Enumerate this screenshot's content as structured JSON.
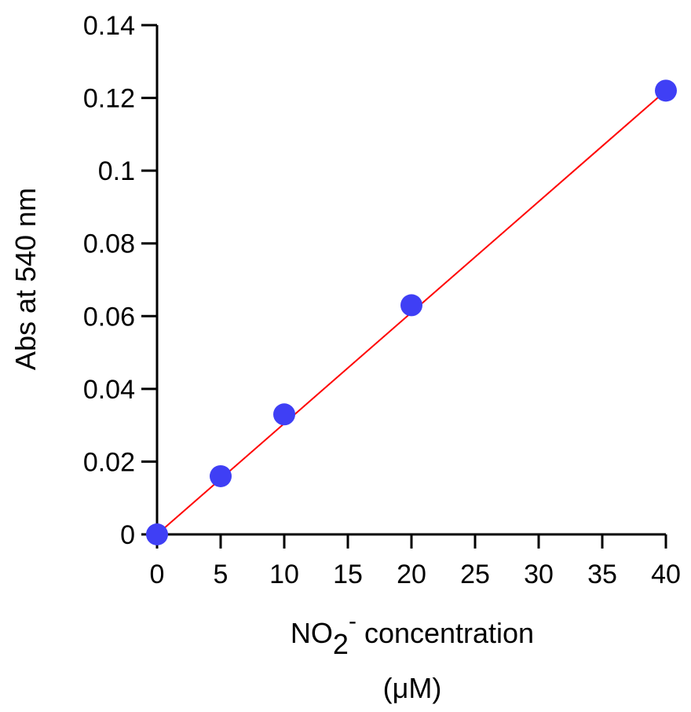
{
  "chart_data": {
    "type": "scatter",
    "title": "",
    "xlabel_main": "NO",
    "xlabel_sub": "2",
    "xlabel_sup": "-",
    "xlabel_rest": " concentration",
    "xlabel_unit": "(μM)",
    "ylabel": "Abs at 540 nm",
    "xlim": [
      0,
      40
    ],
    "ylim": [
      0,
      0.14
    ],
    "x_ticks": [
      "0",
      "5",
      "10",
      "15",
      "20",
      "25",
      "30",
      "35",
      "40"
    ],
    "y_ticks": [
      "0",
      "0.02",
      "0.04",
      "0.06",
      "0.08",
      "0.1",
      "0.12",
      "0.14"
    ],
    "series": [
      {
        "x": [
          0,
          5,
          10,
          20,
          40
        ],
        "y": [
          0,
          0.016,
          0.033,
          0.063,
          0.122
        ],
        "color": "#3f3ff5"
      }
    ],
    "fit_line": {
      "x": [
        0,
        40
      ],
      "y": [
        0,
        0.122
      ],
      "color": "#ff0000"
    },
    "grid": false,
    "legend": "none"
  }
}
